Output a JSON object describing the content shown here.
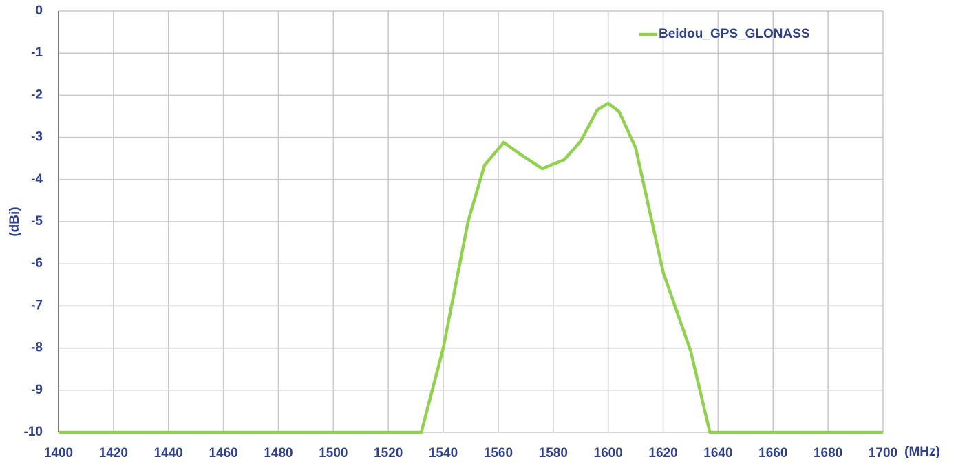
{
  "chart_data": {
    "type": "line",
    "x_label": "(MHz)",
    "y_label": "(dBi)",
    "x": [
      1400,
      1532,
      1540,
      1549,
      1555,
      1562,
      1568,
      1576,
      1584,
      1590,
      1596,
      1600,
      1604,
      1610,
      1620,
      1630,
      1637,
      1700
    ],
    "series": [
      {
        "name": "Beidou_GPS_GLONASS",
        "color": "#92d050",
        "values": [
          -10,
          -10,
          -8,
          -5,
          -3.66,
          -3.12,
          -3.4,
          -3.74,
          -3.53,
          -3.09,
          -2.35,
          -2.19,
          -2.39,
          -3.25,
          -6.2,
          -8.07,
          -10,
          -10
        ]
      }
    ],
    "xlim": [
      1400,
      1700
    ],
    "xticks": [
      1400,
      1420,
      1440,
      1460,
      1480,
      1500,
      1520,
      1540,
      1560,
      1580,
      1600,
      1620,
      1640,
      1660,
      1680,
      1700
    ],
    "ylim": [
      -10,
      0
    ],
    "yticks": [
      0,
      -1,
      -2,
      -3,
      -4,
      -5,
      -6,
      -7,
      -8,
      -9,
      -10
    ],
    "grid": true,
    "legend": "top-right"
  }
}
